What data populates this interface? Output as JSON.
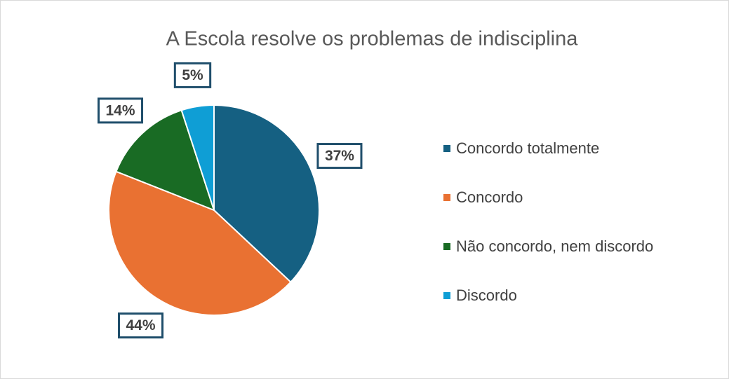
{
  "chart_data": {
    "type": "pie",
    "title": "A Escola resolve os problemas de indisciplina",
    "categories": [
      "Concordo totalmente",
      "Concordo",
      "Não concordo, nem discordo",
      "Discordo"
    ],
    "values": [
      37,
      44,
      14,
      5
    ],
    "value_labels": [
      "37%",
      "44%",
      "14%",
      "5%"
    ],
    "colors": [
      "#156082",
      "#e97132",
      "#196b24",
      "#0f9ed5"
    ],
    "legend": "right"
  }
}
